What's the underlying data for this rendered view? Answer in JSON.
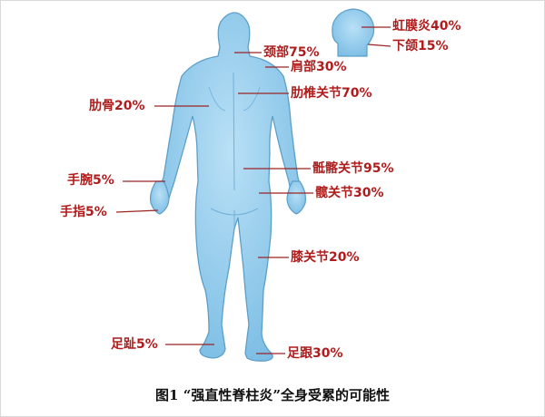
{
  "accent_color": "#b01c1c",
  "line_color": "#9a2424",
  "body_fill": "#8cc8ea",
  "body_stroke": "#5d9fc8",
  "labels": {
    "iris": "虹膜炎40%",
    "jaw": "下颌15%",
    "neck": "颈部75%",
    "shoulder": "肩部30%",
    "costovertebral": "肋椎关节70%",
    "rib": "肋骨20%",
    "wrist": "手腕5%",
    "sacroiliac": "骶髂关节95%",
    "hip": "髋关节30%",
    "finger": "手指5%",
    "knee": "膝关节20%",
    "toe": "足趾5%",
    "heel": "足跟30%"
  },
  "caption": "图1 “强直性脊柱炎”全身受累的可能性"
}
